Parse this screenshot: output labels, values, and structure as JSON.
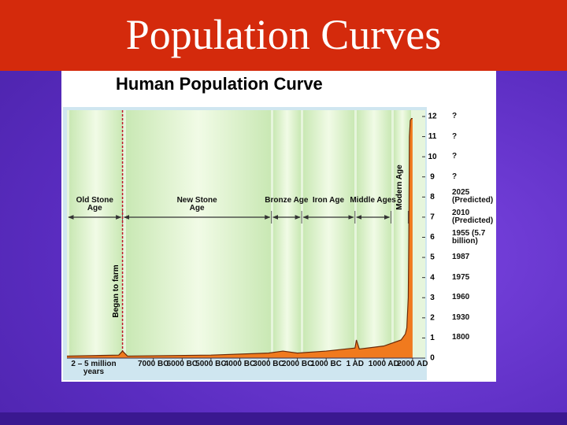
{
  "slide_title": "Population Curves",
  "chart_data": {
    "type": "area",
    "title": "Human Population Curve",
    "x": [
      -10000,
      -8200,
      -8070,
      -7900,
      -5000,
      -3000,
      -2500,
      -2000,
      -1000,
      0,
      50,
      150,
      1000,
      1600,
      1750,
      1800,
      1850,
      1870,
      1890,
      1920,
      1960,
      2000
    ],
    "series": [
      {
        "color": "#f07a1e",
        "values": [
          0.1,
          0.15,
          0.35,
          0.1,
          0.15,
          0.25,
          0.35,
          0.25,
          0.35,
          0.5,
          0.9,
          0.45,
          0.6,
          0.9,
          1.2,
          1.5,
          3,
          6,
          11,
          11.8,
          11.9,
          11.9
        ]
      }
    ],
    "xlim": [
      -10000,
      2440
    ],
    "x_start_label": "2 – 5 million years",
    "xticks": [
      {
        "value": -7000,
        "label": "7000 BC"
      },
      {
        "value": -6000,
        "label": "6000 BC"
      },
      {
        "value": -5000,
        "label": "5000 BC"
      },
      {
        "value": -4000,
        "label": "4000 BC"
      },
      {
        "value": -3000,
        "label": "3000 BC"
      },
      {
        "value": -2000,
        "label": "2000 BC"
      },
      {
        "value": -1000,
        "label": "1000 BC"
      },
      {
        "value": 1,
        "label": "1 AD"
      },
      {
        "value": 1000,
        "label": "1000 AD"
      },
      {
        "value": 2000,
        "label": "2000 AD"
      }
    ],
    "ylim": [
      0,
      12
    ],
    "yticks": [
      0,
      1,
      2,
      3,
      4,
      5,
      6,
      7,
      8,
      9,
      10,
      11,
      12
    ],
    "y_axis_side": "right",
    "milestones": [
      {
        "value": 12,
        "label": "?"
      },
      {
        "value": 11,
        "label": "?"
      },
      {
        "value": 10,
        "label": "?"
      },
      {
        "value": 9,
        "label": "?"
      },
      {
        "value": 8,
        "label": "2025 (Predicted)"
      },
      {
        "value": 7,
        "label": "2010 (Predicted)"
      },
      {
        "value": 6,
        "label": "1955 (5.7 billion)"
      },
      {
        "value": 5,
        "label": "1987"
      },
      {
        "value": 4,
        "label": "1975"
      },
      {
        "value": 3,
        "label": "1960"
      },
      {
        "value": 2,
        "label": "1930"
      },
      {
        "value": 1,
        "label": "1800"
      }
    ],
    "eras": [
      {
        "label": "Old Stone Age",
        "start": -10000,
        "end": -8070
      },
      {
        "label": "New Stone Age",
        "start": -8070,
        "end": -2900
      },
      {
        "label": "Bronze Age",
        "start": -2900,
        "end": -1850
      },
      {
        "label": "Iron Age",
        "start": -1850,
        "end": 0
      },
      {
        "label": "Middle Ages",
        "start": 0,
        "end": 1250
      },
      {
        "label": "Modern Age",
        "start": 1250,
        "end": 1850
      }
    ],
    "annotations": [
      {
        "x": -8070,
        "label": "Began to farm"
      }
    ]
  }
}
